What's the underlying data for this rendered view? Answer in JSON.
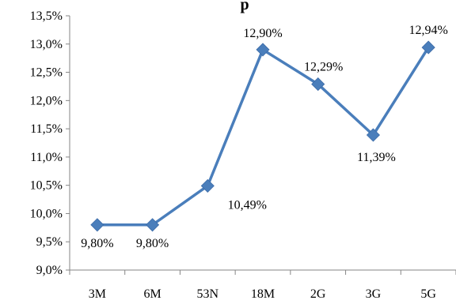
{
  "chart_data": {
    "type": "line",
    "title": "p",
    "xlabel": "",
    "ylabel": "",
    "categories": [
      "3M",
      "6M",
      "53N",
      "18M",
      "2G",
      "3G",
      "5G"
    ],
    "series": [
      {
        "values": [
          9.8,
          9.8,
          10.49,
          12.9,
          12.29,
          11.39,
          12.94
        ],
        "data_labels": [
          "9,80%",
          "9,80%",
          "10,49%",
          "12,90%",
          "12,29%",
          "11,39%",
          "12,94%"
        ],
        "color": "#4a7ebb",
        "marker": "diamond"
      }
    ],
    "ylim": [
      9.0,
      13.5
    ],
    "y_ticks": [
      9.0,
      9.5,
      10.0,
      10.5,
      11.0,
      11.5,
      12.0,
      12.5,
      13.0,
      13.5
    ],
    "y_tick_labels": [
      "9,0%",
      "9,5%",
      "10,0%",
      "10,5%",
      "11,0%",
      "11,5%",
      "12,0%",
      "12,5%",
      "13,0%",
      "13,5%"
    ],
    "grid": false,
    "legend": "none"
  }
}
